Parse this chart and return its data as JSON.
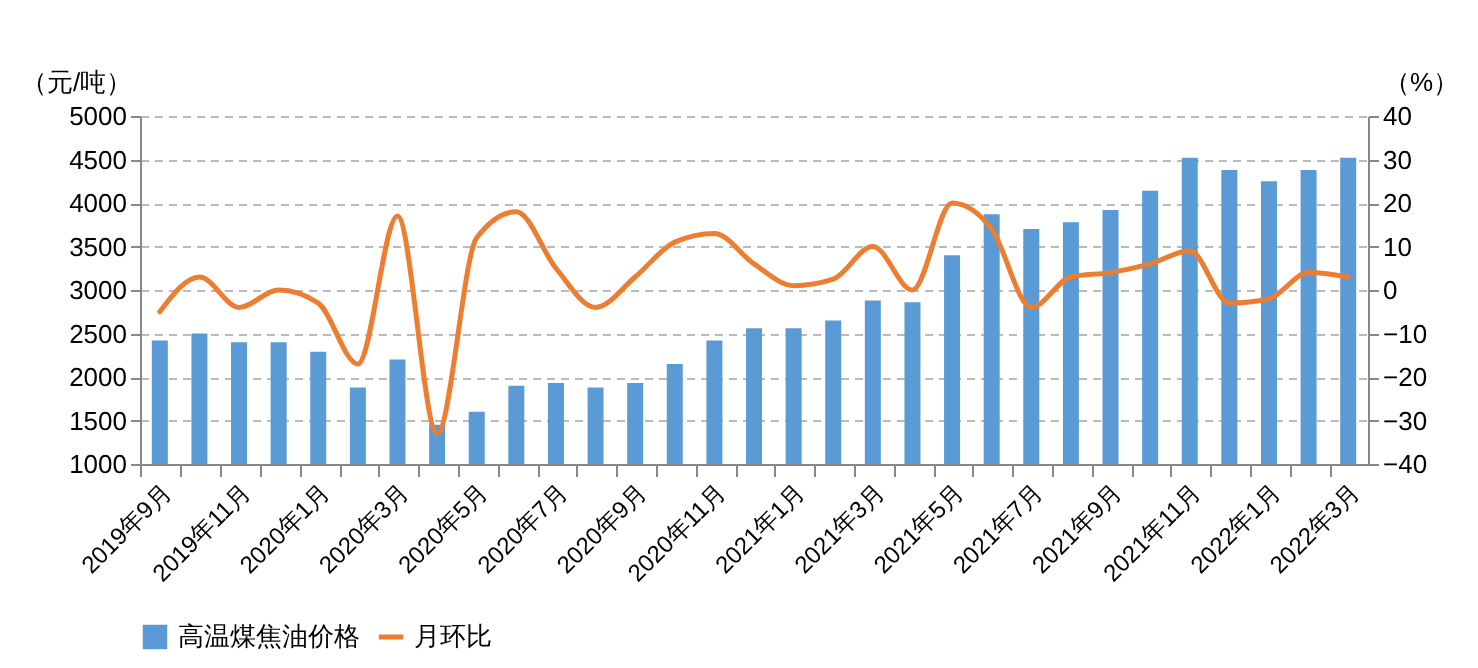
{
  "chart_data": {
    "type": "bar",
    "categories": [
      "2019年9月",
      null,
      "2019年11月",
      null,
      "2020年1月",
      null,
      "2020年3月",
      null,
      "2020年5月",
      null,
      "2020年7月",
      null,
      "2020年9月",
      null,
      "2020年11月",
      null,
      "2021年1月",
      null,
      "2021年3月",
      null,
      "2021年5月",
      null,
      "2021年7月",
      null,
      "2021年9月",
      null,
      "2021年11月",
      null,
      "2022年1月",
      null,
      "2022年3月"
    ],
    "series": [
      {
        "name": "高温煤焦油价格",
        "color": "#5b9bd5",
        "values": [
          2420,
          2500,
          2400,
          2400,
          2290,
          1880,
          2200,
          1450,
          1600,
          1900,
          1930,
          1880,
          1930,
          2150,
          2420,
          2560,
          2560,
          2650,
          2880,
          2860,
          3400,
          3870,
          3700,
          3780,
          3920,
          4140,
          4520,
          4380,
          4250,
          4380,
          4520
        ]
      },
      {
        "name": "月环比",
        "type": "line",
        "axis": "y2",
        "color": "#ed7d31",
        "values": [
          -5,
          3,
          -4,
          0,
          -3,
          -17,
          17,
          -33,
          12,
          18,
          5,
          -4,
          3,
          11,
          13,
          6,
          1,
          2.5,
          10,
          0,
          20,
          14,
          -4,
          3,
          4,
          6,
          9,
          -3,
          -2,
          4,
          3
        ]
      }
    ],
    "ylabel": "（元/吨）",
    "y2label": "（%）",
    "ylim": [
      1000,
      5000
    ],
    "yticks": [
      1000,
      1500,
      2000,
      2500,
      3000,
      3500,
      4000,
      4500,
      5000
    ],
    "y2lim": [
      -40,
      40
    ],
    "y2ticks": [
      -40,
      -30,
      -20,
      -10,
      0,
      10,
      20,
      30,
      40
    ],
    "grid": "y",
    "legend": "bottom"
  }
}
